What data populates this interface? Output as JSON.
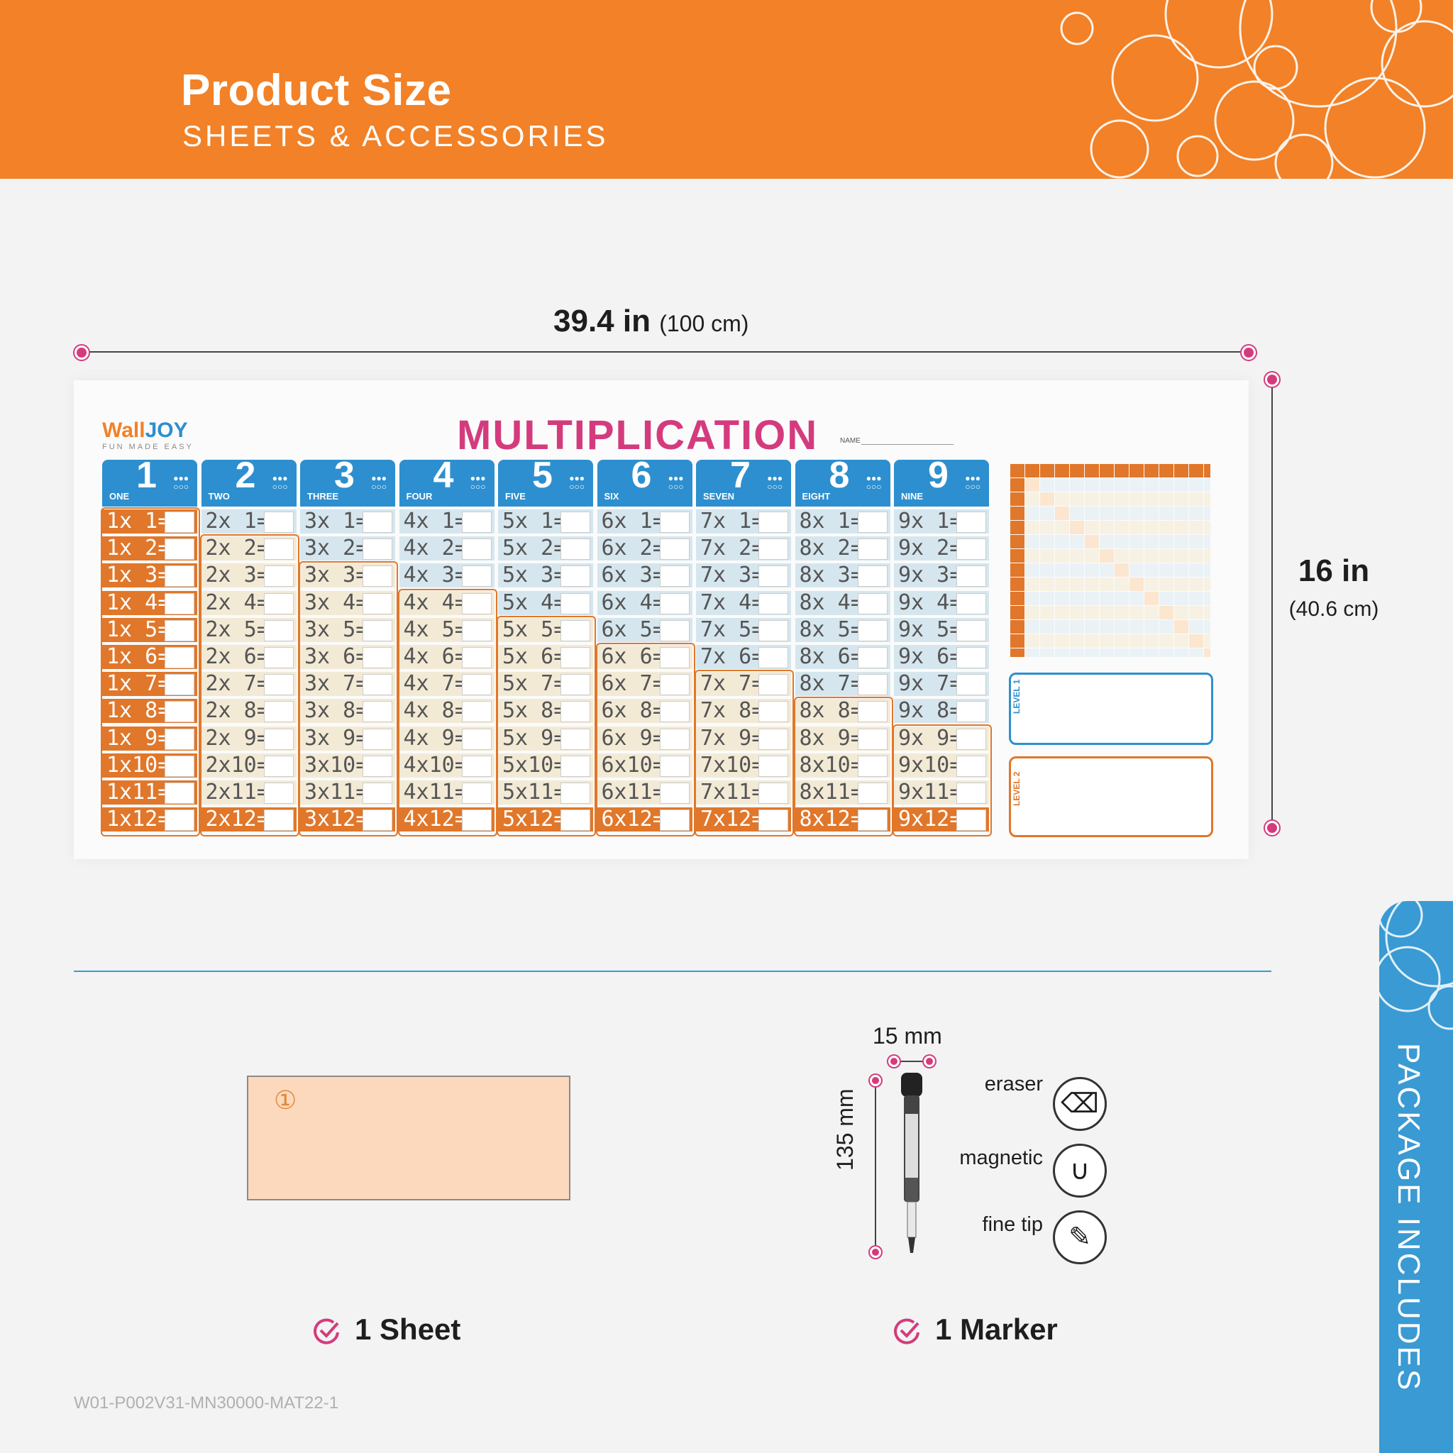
{
  "header": {
    "title": "Product Size",
    "subtitle": "SHEETS & ACCESSORIES",
    "bg_color": "#f28127"
  },
  "dimensions": {
    "width_main": "39.4 in",
    "width_cm": "(100 cm)",
    "height_main": "16 in",
    "height_cm": "(40.6 cm)"
  },
  "poster": {
    "brand_wall": "Wall",
    "brand_joy": "JOY",
    "brand_tagline": "FUN MADE EASY",
    "title": "MULTIPLICATION",
    "name_label": "NAME",
    "columns": [
      {
        "num": "1",
        "word": "ONE"
      },
      {
        "num": "2",
        "word": "TWO"
      },
      {
        "num": "3",
        "word": "THREE"
      },
      {
        "num": "4",
        "word": "FOUR"
      },
      {
        "num": "5",
        "word": "FIVE"
      },
      {
        "num": "6",
        "word": "SIX"
      },
      {
        "num": "7",
        "word": "SEVEN"
      },
      {
        "num": "8",
        "word": "EIGHT"
      },
      {
        "num": "9",
        "word": "NINE"
      }
    ],
    "level1": "LEVEL 1",
    "level2": "LEVEL 2"
  },
  "sheet": {
    "number": "①",
    "label": "1 Sheet"
  },
  "marker": {
    "width_label": "15 mm",
    "length_label": "135 mm",
    "features": [
      {
        "label": "eraser",
        "icon": "eraser-icon"
      },
      {
        "label": "magnetic",
        "icon": "magnet-icon"
      },
      {
        "label": "fine tip",
        "icon": "pen-tip-icon"
      }
    ],
    "label": "1 Marker"
  },
  "side_tab": {
    "text": "PACKAGE INCLUDES",
    "color": "#3a9ad3"
  },
  "sku": "W01-P002V31-MN30000-MAT22-1",
  "colors": {
    "accent_pink": "#d43b7d",
    "orange": "#e0772a",
    "blue": "#2d8fcf"
  }
}
